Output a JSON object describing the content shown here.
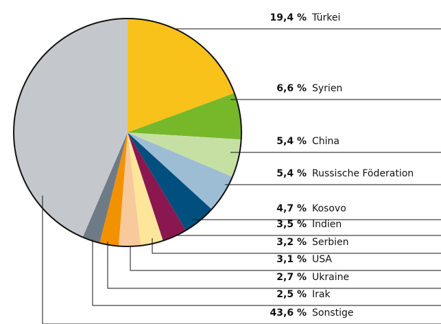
{
  "chart_data": {
    "type": "pie",
    "categories": [
      "Türkei",
      "Syrien",
      "China",
      "Russische Föderation",
      "Kosovo",
      "Indien",
      "Serbien",
      "USA",
      "Ukraine",
      "Irak",
      "Sonstige"
    ],
    "values": [
      19.4,
      6.6,
      5.4,
      5.4,
      4.7,
      3.5,
      3.2,
      3.1,
      2.7,
      2.5,
      43.6
    ],
    "value_labels": [
      "19,4 %",
      "6,6 %",
      "5,4 %",
      "5,4 %",
      "4,7 %",
      "3,5 %",
      "3,2 %",
      "3,1 %",
      "2,7 %",
      "2,5 %",
      "43,6 %"
    ],
    "colors": [
      "#f9c21b",
      "#76b82a",
      "#c6e0a4",
      "#9dbdd4",
      "#004f7f",
      "#8b1750",
      "#fde69a",
      "#f8c99a",
      "#f39200",
      "#6e7b87",
      "#c4c7cb"
    ]
  }
}
